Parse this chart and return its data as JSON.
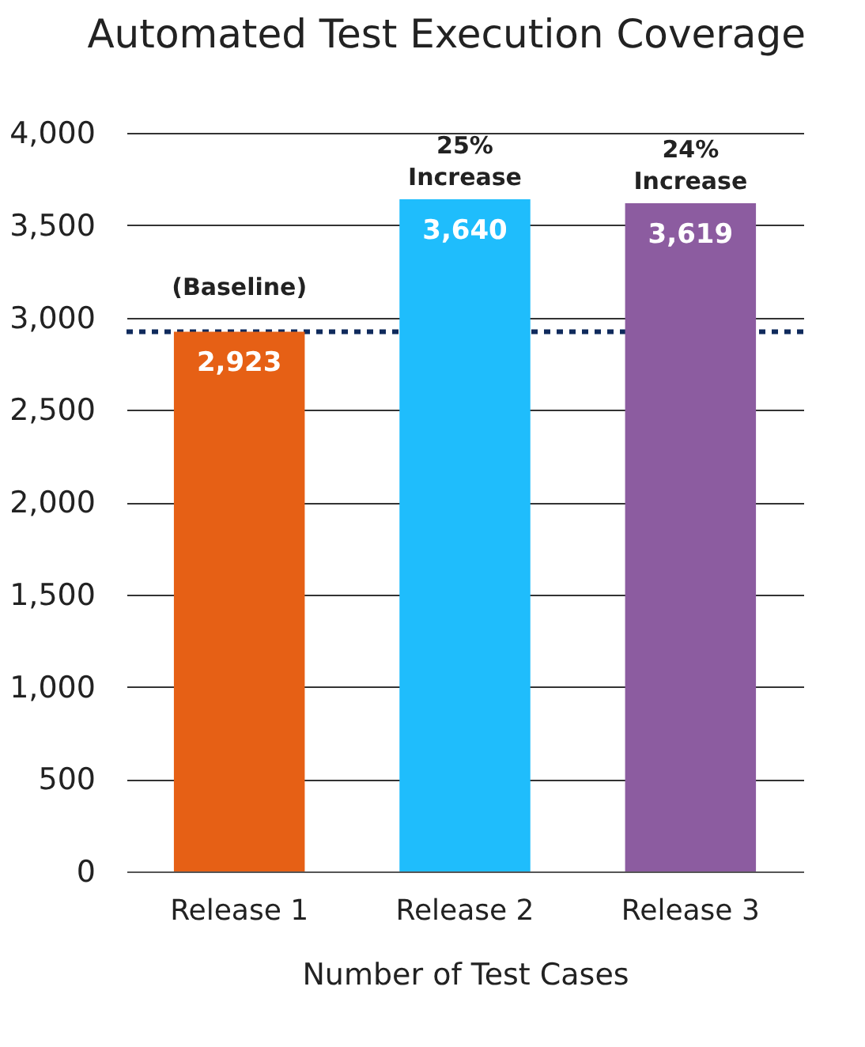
{
  "chart_data": {
    "type": "bar",
    "title": "Automated Test Execution Coverage",
    "xlabel": "Number of Test Cases",
    "categories": [
      "Release 1",
      "Release 2",
      "Release 3"
    ],
    "values": [
      2923,
      3640,
      3619
    ],
    "colors": [
      "#e66015",
      "#1fbdfc",
      "#8c5ca0"
    ],
    "value_labels": [
      "2,923",
      "3,640",
      "3,619"
    ],
    "ylim": [
      0,
      4000
    ],
    "yticks": [
      0,
      500,
      {
        "value": 1000,
        "label": "1,000"
      },
      {
        "value": 1500,
        "label": "1,500"
      },
      {
        "value": 2000,
        "label": "2,000"
      },
      {
        "value": 2500,
        "label": "2,500"
      },
      {
        "value": 3000,
        "label": "3,000"
      },
      {
        "value": 3500,
        "label": "3,500"
      },
      {
        "value": 4000,
        "label": "4,000"
      }
    ],
    "grid": "y",
    "ref_lines": [
      {
        "axis": "y",
        "value": 2923,
        "label": "(Baseline)",
        "color": "#0f2a5c",
        "line_style": "dotted"
      }
    ],
    "annotations": [
      "25% Increase",
      "24% Increase"
    ]
  }
}
